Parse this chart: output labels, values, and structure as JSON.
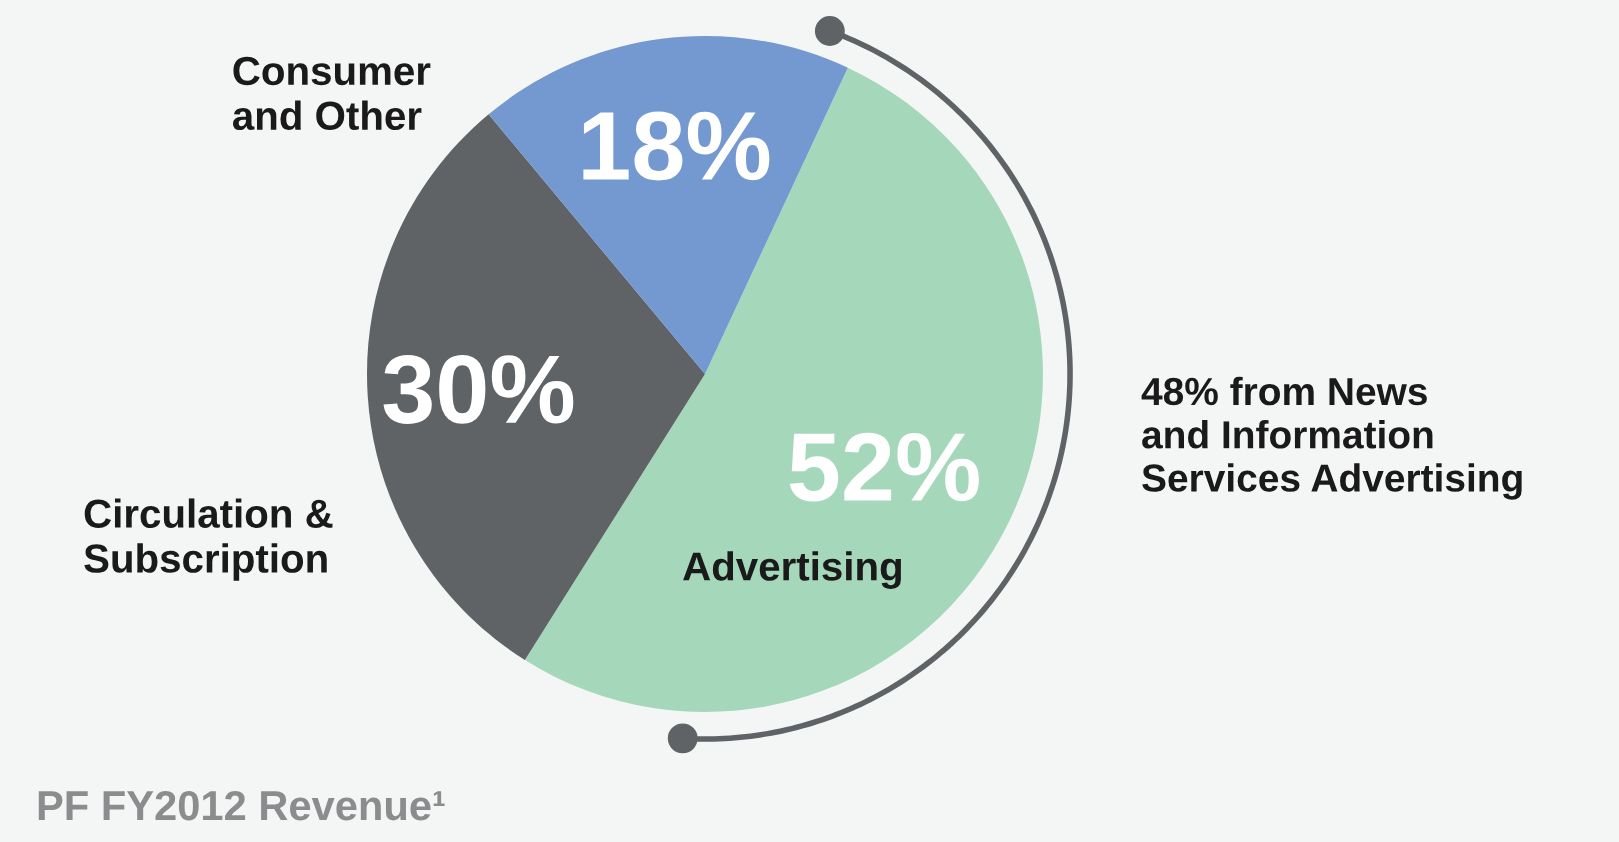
{
  "chart_data": {
    "type": "pie",
    "title": "PF FY2012 Revenue¹",
    "categories": [
      "Advertising",
      "Circulation &\nSubscription",
      "Consumer\nand Other"
    ],
    "values": [
      52,
      30,
      18
    ],
    "colors": [
      "#a5d7bb",
      "#5f6366",
      "#7399d0"
    ],
    "value_labels": [
      "52%",
      "30%",
      "18%"
    ],
    "annotations": [
      "48% from News\nand Information\nServices Advertising"
    ]
  }
}
